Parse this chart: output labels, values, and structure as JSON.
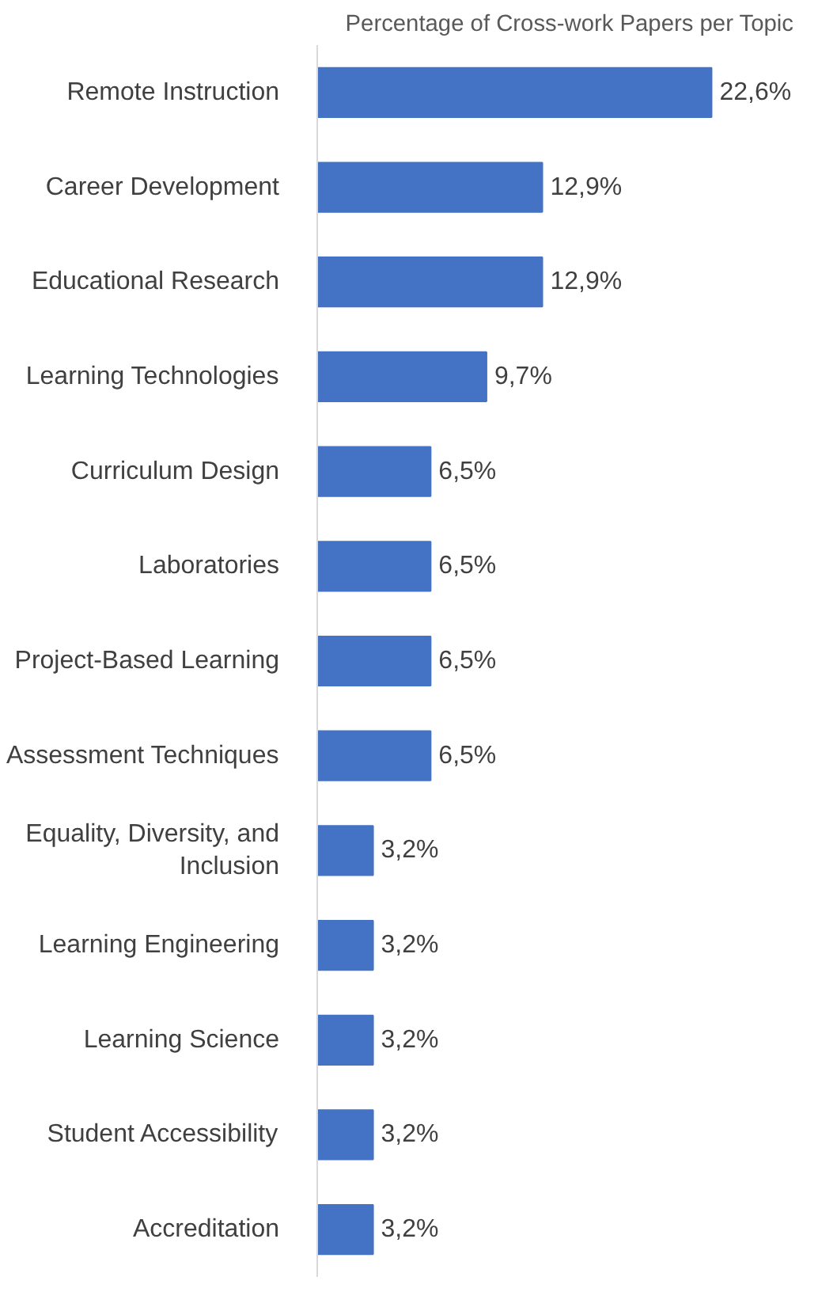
{
  "chart_data": {
    "type": "bar",
    "orientation": "horizontal",
    "title": "Percentage of Cross-work Papers per Topic",
    "categories": [
      "Remote Instruction",
      "Career Development",
      "Educational Research",
      "Learning Technologies",
      "Curriculum Design",
      "Laboratories",
      "Project-Based Learning",
      "Assessment Techniques",
      "Equality, Diversity, and Inclusion",
      "Learning Engineering",
      "Learning Science",
      "Student Accessibility",
      "Accreditation"
    ],
    "values": [
      22.6,
      12.9,
      12.9,
      9.7,
      6.5,
      6.5,
      6.5,
      6.5,
      3.2,
      3.2,
      3.2,
      3.2,
      3.2
    ],
    "value_labels": [
      "22,6%",
      "12,9%",
      "12,9%",
      "9,7%",
      "6,5%",
      "6,5%",
      "6,5%",
      "6,5%",
      "3,2%",
      "3,2%",
      "3,2%",
      "3,2%",
      "3,2%"
    ],
    "color": "#4472c4",
    "grid": false
  }
}
